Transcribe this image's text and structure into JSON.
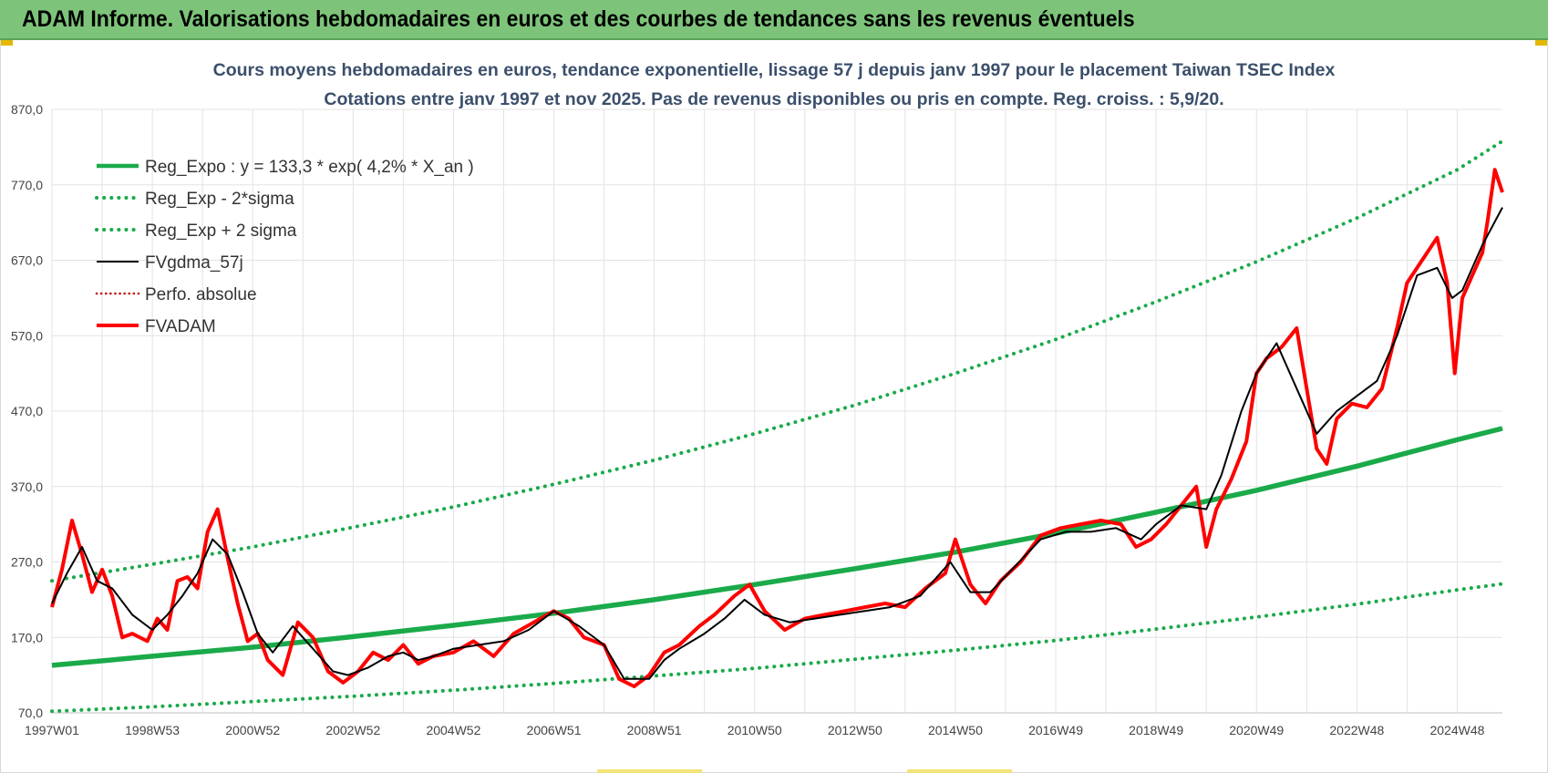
{
  "header": {
    "title": "ADAM Informe. Valorisations hebdomadaires en euros et des courbes de tendances sans les revenus éventuels"
  },
  "colors": {
    "banner": "#7dc47a",
    "reg_expo": "#1aaa4a",
    "sigma": "#1aaa4a",
    "fvgdma": "#000000",
    "perfo": "#c00000",
    "fvadam": "#ff0000",
    "grid": "#e3e3e3"
  },
  "chart_data": {
    "type": "line",
    "title": "Cours moyens hebdomadaires en euros, tendance exponentielle, lissage 57 j depuis janv 1997 pour le placement Taiwan TSEC Index",
    "subtitle": "Cotations entre janv 1997 et nov 2025. Pas de revenus disponibles ou pris en compte. Reg. croiss. : 5,9/20.",
    "xlabel": "",
    "ylabel": "",
    "xlim": [
      1997.0,
      2025.9
    ],
    "ylim": [
      70,
      870
    ],
    "y_ticks": [
      "870,0",
      "770,0",
      "670,0",
      "570,0",
      "470,0",
      "370,0",
      "270,0",
      "170,0",
      "70,0"
    ],
    "x_ticks": [
      {
        "label": "1997W01",
        "x": 1997.0
      },
      {
        "label": "1998W53",
        "x": 1999.0
      },
      {
        "label": "2000W52",
        "x": 2001.0
      },
      {
        "label": "2002W52",
        "x": 2003.0
      },
      {
        "label": "2004W52",
        "x": 2005.0
      },
      {
        "label": "2006W51",
        "x": 2007.0
      },
      {
        "label": "2008W51",
        "x": 2009.0
      },
      {
        "label": "2010W50",
        "x": 2011.0
      },
      {
        "label": "2012W50",
        "x": 2013.0
      },
      {
        "label": "2014W50",
        "x": 2015.0
      },
      {
        "label": "2016W49",
        "x": 2017.0
      },
      {
        "label": "2018W49",
        "x": 2019.0
      },
      {
        "label": "2020W49",
        "x": 2021.0
      },
      {
        "label": "2022W48",
        "x": 2023.0
      },
      {
        "label": "2024W48",
        "x": 2025.0
      }
    ],
    "grid": true,
    "legend_position": "top-left",
    "series": [
      {
        "name": "Reg_Expo : y = 133,3 * exp( 4,2% *  X_an )",
        "style": "solid-thick",
        "x": [
          1997.0,
          1999.0,
          2001.0,
          2003.0,
          2005.0,
          2007.0,
          2009.0,
          2011.0,
          2013.0,
          2015.0,
          2017.0,
          2019.0,
          2021.0,
          2023.0,
          2025.0,
          2025.9
        ],
        "y": [
          133,
          145,
          157,
          171,
          186,
          202,
          220,
          240,
          261,
          283,
          308,
          336,
          365,
          397,
          432,
          447
        ]
      },
      {
        "name": "Reg_Exp - 2*sigma",
        "style": "dotted",
        "x": [
          1997.0,
          1999.0,
          2001.0,
          2003.0,
          2005.0,
          2007.0,
          2009.0,
          2011.0,
          2013.0,
          2015.0,
          2017.0,
          2019.0,
          2021.0,
          2023.0,
          2025.0,
          2025.9
        ],
        "y": [
          72,
          78,
          85,
          92,
          100,
          109,
          119,
          129,
          141,
          153,
          166,
          181,
          197,
          214,
          233,
          241
        ]
      },
      {
        "name": "Reg_Exp + 2 sigma",
        "style": "dotted",
        "x": [
          1997.0,
          1999.0,
          2001.0,
          2003.0,
          2005.0,
          2007.0,
          2009.0,
          2011.0,
          2013.0,
          2015.0,
          2017.0,
          2019.0,
          2021.0,
          2023.0,
          2025.0,
          2025.9
        ],
        "y": [
          245,
          267,
          290,
          316,
          343,
          373,
          405,
          440,
          478,
          520,
          565,
          615,
          668,
          726,
          790,
          828
        ]
      },
      {
        "name": "FVgdma_57j",
        "style": "solid-thin",
        "x": [
          1997.0,
          1997.3,
          1997.6,
          1997.9,
          1998.2,
          1998.6,
          1999.0,
          1999.3,
          1999.6,
          1999.9,
          2000.2,
          2000.5,
          2000.8,
          2001.1,
          2001.4,
          2001.8,
          2002.2,
          2002.6,
          2002.9,
          2003.3,
          2003.7,
          2004.0,
          2004.3,
          2004.6,
          2005.0,
          2005.5,
          2006.0,
          2006.5,
          2007.0,
          2007.5,
          2008.0,
          2008.4,
          2008.9,
          2009.2,
          2009.5,
          2010.0,
          2010.4,
          2010.8,
          2011.2,
          2011.7,
          2012.2,
          2012.7,
          2013.2,
          2013.7,
          2014.3,
          2014.9,
          2015.3,
          2015.7,
          2016.2,
          2016.7,
          2017.2,
          2017.7,
          2018.2,
          2018.7,
          2019.0,
          2019.5,
          2020.0,
          2020.3,
          2020.7,
          2021.0,
          2021.4,
          2021.8,
          2022.2,
          2022.6,
          2023.0,
          2023.4,
          2023.8,
          2024.2,
          2024.6,
          2024.9,
          2025.1,
          2025.5,
          2025.9
        ],
        "y": [
          215,
          255,
          290,
          245,
          235,
          200,
          180,
          200,
          225,
          255,
          300,
          280,
          230,
          175,
          150,
          185,
          155,
          125,
          120,
          130,
          145,
          150,
          140,
          145,
          155,
          160,
          165,
          180,
          205,
          185,
          160,
          115,
          115,
          140,
          155,
          175,
          195,
          220,
          200,
          190,
          195,
          200,
          205,
          210,
          225,
          270,
          230,
          230,
          265,
          300,
          310,
          310,
          315,
          300,
          320,
          345,
          340,
          385,
          470,
          520,
          560,
          500,
          440,
          470,
          490,
          510,
          570,
          650,
          660,
          620,
          630,
          690,
          740
        ]
      },
      {
        "name": "Perfo. absolue",
        "style": "dotted",
        "x": [],
        "y": []
      },
      {
        "name": "FVADAM",
        "style": "solid-thick",
        "x": [
          1997.0,
          1997.2,
          1997.4,
          1997.6,
          1997.8,
          1998.0,
          1998.2,
          1998.4,
          1998.6,
          1998.9,
          1999.1,
          1999.3,
          1999.5,
          1999.7,
          1999.9,
          2000.1,
          2000.3,
          2000.5,
          2000.7,
          2000.9,
          2001.1,
          2001.3,
          2001.6,
          2001.9,
          2002.2,
          2002.5,
          2002.8,
          2003.1,
          2003.4,
          2003.7,
          2004.0,
          2004.3,
          2004.6,
          2005.0,
          2005.4,
          2005.8,
          2006.2,
          2006.6,
          2007.0,
          2007.3,
          2007.6,
          2008.0,
          2008.3,
          2008.6,
          2008.9,
          2009.2,
          2009.5,
          2009.9,
          2010.2,
          2010.6,
          2010.9,
          2011.2,
          2011.6,
          2012.0,
          2012.4,
          2012.8,
          2013.2,
          2013.6,
          2014.0,
          2014.4,
          2014.8,
          2015.0,
          2015.3,
          2015.6,
          2015.9,
          2016.3,
          2016.7,
          2017.1,
          2017.5,
          2017.9,
          2018.3,
          2018.6,
          2018.9,
          2019.2,
          2019.5,
          2019.8,
          2020.0,
          2020.2,
          2020.5,
          2020.8,
          2021.0,
          2021.2,
          2021.5,
          2021.8,
          2022.0,
          2022.2,
          2022.4,
          2022.6,
          2022.9,
          2023.2,
          2023.5,
          2023.8,
          2024.0,
          2024.3,
          2024.6,
          2024.8,
          2024.95,
          2025.1,
          2025.3,
          2025.5,
          2025.6,
          2025.75,
          2025.9
        ],
        "y": [
          210,
          260,
          325,
          280,
          230,
          260,
          225,
          170,
          175,
          165,
          195,
          180,
          245,
          250,
          235,
          310,
          340,
          275,
          215,
          165,
          175,
          140,
          120,
          190,
          170,
          125,
          110,
          125,
          150,
          140,
          160,
          135,
          145,
          150,
          165,
          145,
          175,
          190,
          205,
          195,
          170,
          160,
          115,
          105,
          120,
          150,
          160,
          185,
          200,
          225,
          240,
          205,
          180,
          195,
          200,
          205,
          210,
          215,
          210,
          235,
          255,
          300,
          240,
          215,
          245,
          270,
          305,
          315,
          320,
          325,
          320,
          290,
          300,
          320,
          345,
          370,
          290,
          340,
          380,
          430,
          520,
          540,
          555,
          580,
          500,
          420,
          400,
          460,
          480,
          475,
          500,
          580,
          640,
          670,
          700,
          640,
          520,
          620,
          650,
          680,
          720,
          790,
          760
        ]
      }
    ]
  }
}
